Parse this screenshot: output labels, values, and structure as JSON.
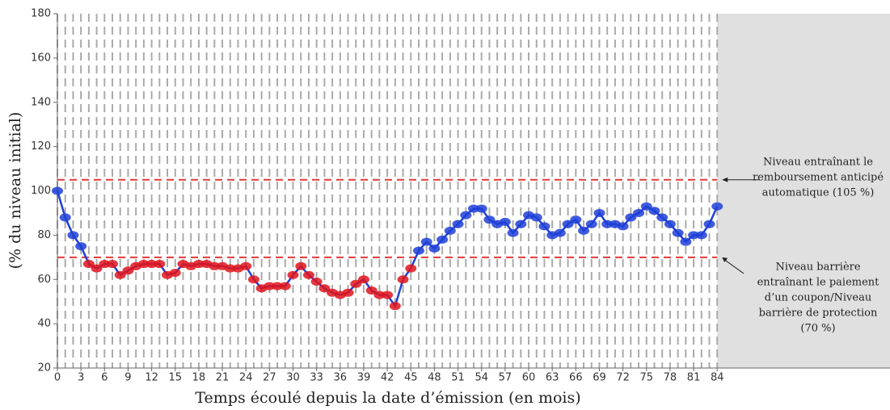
{
  "chart_data": {
    "type": "line",
    "x_label": "Temps écoulé depuis la date d’émission (en mois)",
    "y_label": "(% du niveau initial)",
    "x": [
      0,
      1,
      2,
      3,
      4,
      5,
      6,
      7,
      8,
      9,
      10,
      11,
      12,
      13,
      14,
      15,
      16,
      17,
      18,
      19,
      20,
      21,
      22,
      23,
      24,
      25,
      26,
      27,
      28,
      29,
      30,
      31,
      32,
      33,
      34,
      35,
      36,
      37,
      38,
      39,
      40,
      41,
      42,
      43,
      44,
      45,
      46,
      47,
      48,
      49,
      50,
      51,
      52,
      53,
      54,
      55,
      56,
      57,
      58,
      59,
      60,
      61,
      62,
      63,
      64,
      65,
      66,
      67,
      68,
      69,
      70,
      71,
      72,
      73,
      74,
      75,
      76,
      77,
      78,
      79,
      80,
      81,
      82,
      83,
      84
    ],
    "series": [
      {
        "color": "#1f3fd8",
        "marker_color_below": "#e0141c",
        "values": [
          100,
          88,
          80,
          75,
          67,
          65,
          67,
          67,
          62,
          64,
          66,
          67,
          67,
          67,
          62,
          63,
          67,
          66,
          67,
          67,
          66,
          66,
          65,
          65,
          66,
          60,
          56,
          57,
          57,
          57,
          62,
          66,
          62,
          59,
          56,
          54,
          53,
          54,
          58,
          60,
          55,
          53,
          53,
          48,
          60,
          65,
          73,
          77,
          74,
          78,
          82,
          85,
          89,
          92,
          92,
          87,
          85,
          86,
          81,
          85,
          89,
          88,
          84,
          80,
          81,
          85,
          87,
          82,
          85,
          90,
          85,
          85,
          84,
          88,
          90,
          93,
          91,
          88,
          85,
          81,
          77,
          80,
          80,
          85,
          93
        ]
      }
    ],
    "reference_lines": [
      {
        "value": 105,
        "color": "#e03a3a",
        "annotation": [
          "Niveau entraînant le",
          "remboursement anticipé",
          "automatique (105 %)"
        ]
      },
      {
        "value": 70,
        "color": "#e03a3a",
        "annotation": [
          "Niveau barrière",
          "entraînant le paiement",
          "d’un coupon/Niveau",
          "barrière de protection",
          "(70 %)"
        ]
      }
    ],
    "shade_from": 84,
    "xlim": [
      0,
      106
    ],
    "ylim": [
      20,
      180
    ],
    "xticks": [
      0,
      3,
      6,
      9,
      12,
      15,
      18,
      21,
      24,
      27,
      30,
      33,
      36,
      39,
      42,
      45,
      48,
      51,
      54,
      57,
      60,
      63,
      66,
      69,
      72,
      75,
      78,
      81,
      84
    ],
    "yticks": [
      20,
      40,
      60,
      80,
      100,
      120,
      140,
      160,
      180
    ]
  }
}
